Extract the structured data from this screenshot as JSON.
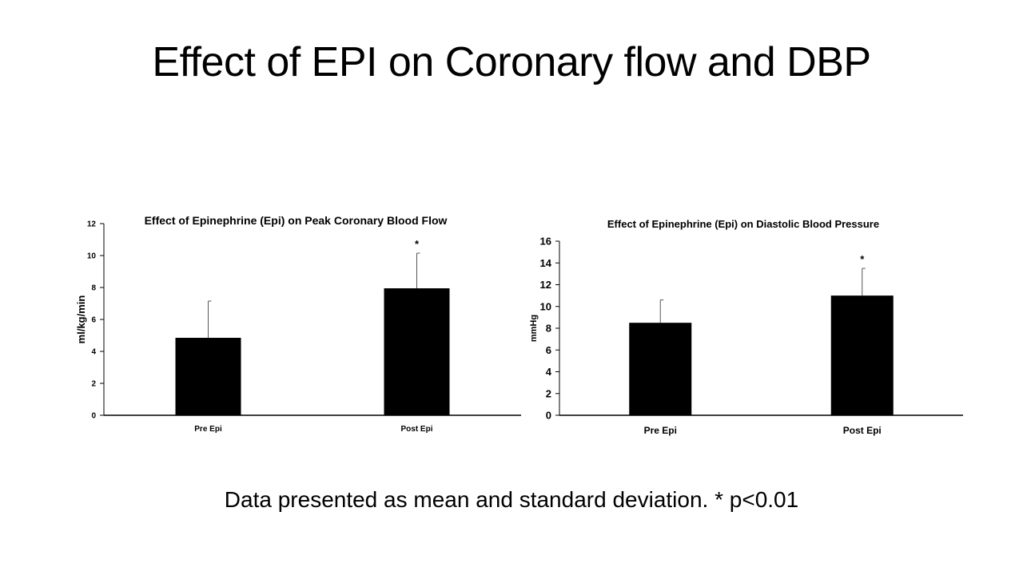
{
  "slide": {
    "title": "Effect of EPI on Coronary flow and DBP",
    "footnote": "Data presented as mean and standard deviation. * p<0.01"
  },
  "chart_data": [
    {
      "type": "bar",
      "title": "Effect of Epinephrine (Epi) on Peak Coronary Blood Flow",
      "xlabel": "",
      "ylabel": "ml/kg/min",
      "categories": [
        "Pre Epi",
        "Post Epi"
      ],
      "values": [
        4.85,
        7.95
      ],
      "error_bars_sd": [
        2.3,
        2.2
      ],
      "annotations": [
        "",
        "*"
      ],
      "ylim": [
        0,
        12
      ],
      "yticks": [
        0,
        2,
        4,
        6,
        8,
        10,
        12
      ],
      "grid": false,
      "legend": "none",
      "bar_color": "#000000"
    },
    {
      "type": "bar",
      "title": "Effect of Epinephrine (Epi) on Diastolic Blood Pressure",
      "xlabel": "",
      "ylabel": "mmHg",
      "categories": [
        "Pre Epi",
        "Post Epi"
      ],
      "values": [
        8.5,
        11.0
      ],
      "error_bars_sd": [
        2.1,
        2.5
      ],
      "annotations": [
        "",
        "*"
      ],
      "ylim": [
        0,
        16
      ],
      "yticks": [
        0,
        2,
        4,
        6,
        8,
        10,
        12,
        14,
        16
      ],
      "grid": false,
      "legend": "none",
      "bar_color": "#000000"
    }
  ]
}
